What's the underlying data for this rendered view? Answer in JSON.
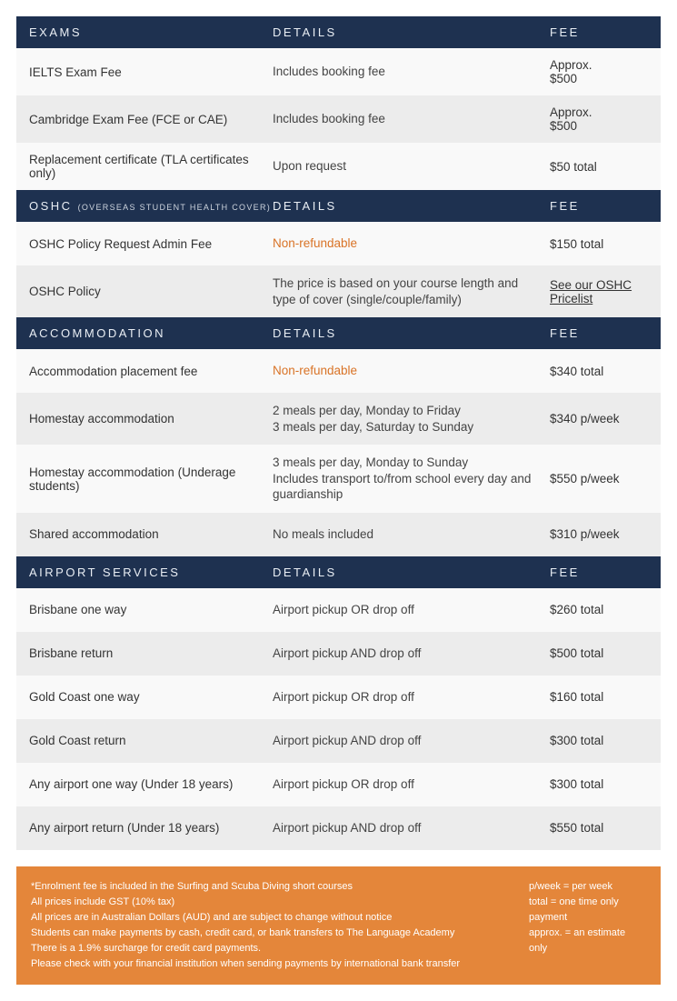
{
  "colors": {
    "header_bg": "#1e3150",
    "header_text": "#e9eef4",
    "row_even": "#ececec",
    "row_odd": "#f9f9f9",
    "nonrefundable": "#d97326",
    "footer_bg": "#e4863a",
    "footer_text": "#ffffff"
  },
  "columns": {
    "name": "",
    "details": "DETAILS",
    "fee": "FEE"
  },
  "sections": [
    {
      "title": "EXAMS",
      "subnote": "",
      "rows": [
        {
          "name": "IELTS Exam Fee",
          "details": "Includes booking fee",
          "fee": "Approx.\n$500",
          "nonref": false,
          "link": false
        },
        {
          "name": "Cambridge Exam Fee (FCE or CAE)",
          "details": "Includes booking fee",
          "fee": "Approx.\n$500",
          "nonref": false,
          "link": false
        },
        {
          "name": "Replacement certificate (TLA certificates only)",
          "details": "Upon request",
          "fee": "$50 total",
          "nonref": false,
          "link": false
        }
      ]
    },
    {
      "title": "OSHC",
      "subnote": "(OVERSEAS STUDENT HEALTH COVER)",
      "rows": [
        {
          "name": "OSHC Policy Request Admin Fee",
          "details": "Non-refundable",
          "fee": "$150 total",
          "nonref": true,
          "link": false
        },
        {
          "name": "OSHC Policy",
          "details": "The price is based on your course length and type of cover (single/couple/family)",
          "fee": "See our OSHC Pricelist",
          "nonref": false,
          "link": true
        }
      ]
    },
    {
      "title": "ACCOMMODATION",
      "subnote": "",
      "rows": [
        {
          "name": "Accommodation placement fee",
          "details": "Non-refundable",
          "fee": "$340 total",
          "nonref": true,
          "link": false
        },
        {
          "name": "Homestay accommodation",
          "details": "2 meals per day, Monday to Friday\n3 meals per day, Saturday to Sunday",
          "fee": "$340 p/week",
          "nonref": false,
          "link": false
        },
        {
          "name": "Homestay accommodation (Underage students)",
          "details": "3 meals per day, Monday to Sunday\nIncludes transport to/from school every day and guardianship",
          "fee": "$550 p/week",
          "nonref": false,
          "link": false
        },
        {
          "name": "Shared accommodation",
          "details": "No meals included",
          "fee": "$310 p/week",
          "nonref": false,
          "link": false
        }
      ]
    },
    {
      "title": "AIRPORT SERVICES",
      "subnote": "",
      "rows": [
        {
          "name": "Brisbane one way",
          "details": "Airport pickup OR drop off",
          "fee": "$260 total",
          "nonref": false,
          "link": false
        },
        {
          "name": "Brisbane return",
          "details": "Airport pickup AND drop off",
          "fee": "$500 total",
          "nonref": false,
          "link": false
        },
        {
          "name": "Gold Coast one way",
          "details": "Airport pickup OR drop off",
          "fee": "$160 total",
          "nonref": false,
          "link": false
        },
        {
          "name": "Gold Coast return",
          "details": "Airport pickup AND drop off",
          "fee": "$300 total",
          "nonref": false,
          "link": false
        },
        {
          "name": "Any airport one way (Under 18 years)",
          "details": "Airport pickup OR drop off",
          "fee": "$300 total",
          "nonref": false,
          "link": false
        },
        {
          "name": "Any airport return (Under 18 years)",
          "details": "Airport pickup AND drop off",
          "fee": "$550 total",
          "nonref": false,
          "link": false
        }
      ]
    }
  ],
  "footer": {
    "left": "*Enrolment fee is included in the Surfing and Scuba Diving short courses\nAll prices include GST (10% tax)\nAll prices are in Australian Dollars (AUD) and are subject to change without notice\nStudents can make payments by cash, credit card, or bank transfers to The Language Academy\nThere is a 1.9% surcharge for credit card payments.\nPlease check with your financial institution when sending payments by international bank transfer",
    "right": "p/week = per week\ntotal = one time only payment\napprox. = an estimate only"
  }
}
